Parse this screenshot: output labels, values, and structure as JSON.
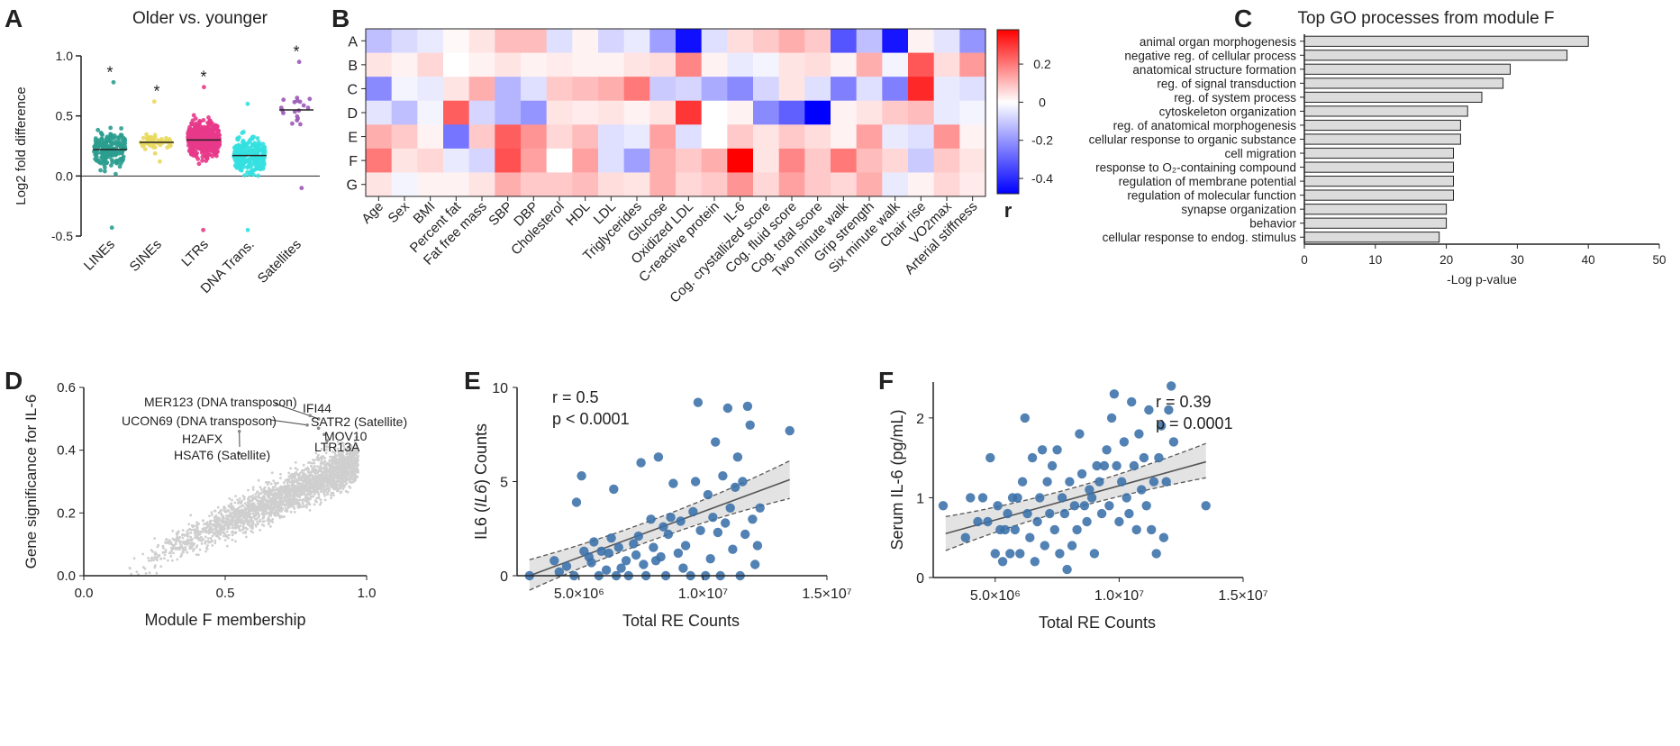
{
  "panels": {
    "a": "A",
    "b": "B",
    "c": "C",
    "d": "D",
    "e": "E",
    "f": "F"
  },
  "chart_data": [
    {
      "type": "scatter",
      "panel": "A",
      "title": "Older vs. younger",
      "ylabel": "Log2 fold difference",
      "ylim": [
        -0.5,
        1.0
      ],
      "yticks": [
        "-0.5",
        "0.0",
        "0.5",
        "1.0"
      ],
      "categories": [
        "LINEs",
        "SINEs",
        "LTRs",
        "DNA Trans.",
        "Satellites"
      ],
      "colors": [
        "#2a9d8f",
        "#e9d85c",
        "#e8388a",
        "#34e0e0",
        "#9b59b6"
      ],
      "medians": [
        0.22,
        0.28,
        0.3,
        0.17,
        0.55
      ],
      "ranges": [
        [
          -0.43,
          0.78
        ],
        [
          0.12,
          0.62
        ],
        [
          -0.45,
          0.74
        ],
        [
          -0.45,
          0.6
        ],
        [
          -0.1,
          0.95
        ]
      ],
      "n": [
        180,
        55,
        420,
        230,
        20
      ],
      "significance": [
        "*",
        "*",
        "*",
        "",
        "*"
      ]
    },
    {
      "type": "heatmap",
      "panel": "B",
      "rows": [
        "A",
        "B",
        "C",
        "D",
        "E",
        "F",
        "G"
      ],
      "columns": [
        "Age",
        "Sex",
        "BMI",
        "Percent fat",
        "Fat free mass",
        "SBP",
        "DBP",
        "Cholesterol",
        "HDL",
        "LDL",
        "Triglycerides",
        "Glucose",
        "Oxidized LDL",
        "C-reactive protein",
        "IL-6",
        "Cog. crystallized score",
        "Cog. fluid score",
        "Cog. total score",
        "Two minute walk",
        "Grip strength",
        "Six minute walk",
        "Chair rise",
        "VO2max",
        "Arterial stiffness"
      ],
      "values": [
        [
          -0.12,
          -0.07,
          -0.04,
          0.01,
          0.04,
          0.1,
          0.1,
          -0.06,
          0.02,
          -0.08,
          -0.04,
          -0.18,
          -0.45,
          -0.06,
          0.05,
          0.08,
          0.12,
          0.08,
          -0.32,
          -0.12,
          -0.44,
          0.02,
          -0.05,
          -0.2
        ],
        [
          0.04,
          0.02,
          0.06,
          0.0,
          0.02,
          0.04,
          0.02,
          0.03,
          0.02,
          0.02,
          0.04,
          0.05,
          0.18,
          0.02,
          -0.04,
          -0.02,
          0.04,
          0.05,
          0.02,
          0.12,
          -0.02,
          0.25,
          0.05,
          0.15
        ],
        [
          -0.22,
          -0.02,
          -0.04,
          0.04,
          0.12,
          -0.14,
          -0.06,
          0.08,
          0.1,
          0.12,
          0.2,
          -0.1,
          -0.08,
          -0.16,
          -0.22,
          -0.08,
          0.04,
          -0.06,
          -0.24,
          -0.06,
          -0.24,
          0.32,
          -0.04,
          -0.06
        ],
        [
          -0.05,
          -0.12,
          -0.02,
          0.24,
          -0.08,
          -0.14,
          -0.2,
          0.04,
          0.03,
          0.04,
          0.02,
          0.04,
          0.3,
          0.0,
          0.02,
          -0.22,
          -0.3,
          -0.48,
          0.02,
          0.04,
          0.08,
          0.1,
          -0.04,
          -0.02
        ],
        [
          0.12,
          0.08,
          0.02,
          -0.26,
          0.08,
          0.24,
          0.16,
          0.06,
          0.1,
          -0.06,
          -0.04,
          0.14,
          -0.06,
          0.0,
          0.08,
          0.04,
          0.08,
          0.05,
          0.02,
          0.14,
          -0.04,
          -0.06,
          0.16,
          0.02
        ],
        [
          0.2,
          0.04,
          0.06,
          -0.04,
          -0.08,
          0.26,
          0.14,
          0.0,
          0.14,
          -0.06,
          -0.18,
          0.12,
          0.08,
          0.12,
          0.4,
          0.04,
          0.18,
          0.08,
          0.2,
          0.1,
          0.06,
          -0.1,
          0.08,
          0.04
        ],
        [
          0.04,
          -0.02,
          0.02,
          0.02,
          0.04,
          0.12,
          0.08,
          0.08,
          0.1,
          0.05,
          0.04,
          0.12,
          0.06,
          0.08,
          0.16,
          0.06,
          0.14,
          0.08,
          0.06,
          0.12,
          -0.04,
          0.02,
          0.06,
          0.03
        ]
      ],
      "colorbar": {
        "label": "r",
        "min": -0.48,
        "max": 0.38,
        "ticks": [
          "0.2",
          "0",
          "-0.2",
          "-0.4"
        ],
        "tick_values": [
          0.2,
          0,
          -0.2,
          -0.4
        ],
        "low_color": "#0000ff",
        "mid_color": "#ffffff",
        "high_color": "#ff0000"
      }
    },
    {
      "type": "bar",
      "panel": "C",
      "title": "Top GO processes from module F",
      "xlabel": "-Log p-value",
      "xlim": [
        0,
        50
      ],
      "xticks": [
        "0",
        "10",
        "20",
        "30",
        "40",
        "50"
      ],
      "categories": [
        "animal organ morphogenesis",
        "negative reg. of cellular process",
        "anatomical structure formation",
        "reg. of signal transduction",
        "reg. of system process",
        "cytoskeleton organization",
        "reg. of anatomical morphogenesis",
        "cellular response to organic substance",
        "cell migration",
        "response to O₂-containing compound",
        "regulation of membrane potential",
        "regulation of molecular function",
        "synapse organization",
        "behavior",
        "cellular response to endog. stimulus"
      ],
      "values": [
        40,
        37,
        29,
        28,
        25,
        23,
        22,
        22,
        21,
        21,
        21,
        21,
        20,
        20,
        19
      ],
      "bar_color": "#dcdcdc"
    },
    {
      "type": "scatter",
      "panel": "D",
      "xlabel": "Module F membership",
      "ylabel": "Gene significance for IL-6",
      "xlim": [
        0,
        1.0
      ],
      "ylim": [
        0,
        0.6
      ],
      "xticks": [
        "0.0",
        "0.5",
        "1.0"
      ],
      "yticks": [
        "0.0",
        "0.2",
        "0.4",
        "0.6"
      ],
      "point_color": "#cfcfcf",
      "annotations": [
        {
          "label": "MER123 (DNA transposon)",
          "x": 0.83,
          "y": 0.5
        },
        {
          "label": "IFI44",
          "x": 0.8,
          "y": 0.51
        },
        {
          "label": "UCON69 (DNA transposon)",
          "x": 0.79,
          "y": 0.48
        },
        {
          "label": "SATR2 (Satellite)",
          "x": 0.83,
          "y": 0.47
        },
        {
          "label": "H2AFX",
          "x": 0.55,
          "y": 0.46
        },
        {
          "label": "MOV10",
          "x": 0.85,
          "y": 0.45
        },
        {
          "label": "HSAT6 (Satellite)",
          "x": 0.55,
          "y": 0.39
        },
        {
          "label": "LTR13A",
          "x": 0.86,
          "y": 0.43
        }
      ]
    },
    {
      "type": "scatter",
      "panel": "E",
      "xlabel": "Total RE Counts",
      "ylabel": "IL6 (IL6) Counts",
      "ylabel_parts": [
        "IL6 (",
        "IL6",
        ") Counts"
      ],
      "xlim": [
        2500000.0,
        15000000.0
      ],
      "ylim": [
        0,
        10
      ],
      "xticks": [
        "5.0×10⁶",
        "1.0×10⁷",
        "1.5×10⁷"
      ],
      "xtick_values": [
        5000000.0,
        10000000.0,
        15000000.0
      ],
      "yticks": [
        "0",
        "5",
        "10"
      ],
      "stats": [
        "r = 0.5",
        "p < 0.0001"
      ],
      "point_color": "#3a6fa8",
      "fit": {
        "x": [
          3000000.0,
          13500000.0
        ],
        "y": [
          0.0,
          5.1
        ],
        "ci_low": [
          -0.9,
          4.1
        ],
        "ci_high": [
          1.0,
          6.1
        ]
      },
      "points": [
        [
          3000000.0,
          0
        ],
        [
          4000000.0,
          0.8
        ],
        [
          4200000.0,
          0.2
        ],
        [
          4500000.0,
          0.5
        ],
        [
          4800000.0,
          0
        ],
        [
          4900000.0,
          3.9
        ],
        [
          5100000.0,
          5.3
        ],
        [
          5200000.0,
          1.3
        ],
        [
          5400000.0,
          1.0
        ],
        [
          5500000.0,
          0.7
        ],
        [
          5600000.0,
          1.8
        ],
        [
          5800000.0,
          0
        ],
        [
          5900000.0,
          1.3
        ],
        [
          6100000.0,
          0.3
        ],
        [
          6200000.0,
          1.2
        ],
        [
          6300000.0,
          2.0
        ],
        [
          6400000.0,
          4.6
        ],
        [
          6500000.0,
          0
        ],
        [
          6600000.0,
          1.5
        ],
        [
          6700000.0,
          0.4
        ],
        [
          6900000.0,
          0.8
        ],
        [
          7000000.0,
          0
        ],
        [
          7200000.0,
          1.7
        ],
        [
          7300000.0,
          1.1
        ],
        [
          7400000.0,
          2.1
        ],
        [
          7500000.0,
          6.0
        ],
        [
          7600000.0,
          0.6
        ],
        [
          7700000.0,
          0
        ],
        [
          7900000.0,
          3.0
        ],
        [
          8000000.0,
          1.5
        ],
        [
          8100000.0,
          0.8
        ],
        [
          8200000.0,
          6.3
        ],
        [
          8300000.0,
          1.0
        ],
        [
          8400000.0,
          2.6
        ],
        [
          8500000.0,
          0
        ],
        [
          8600000.0,
          2.2
        ],
        [
          8700000.0,
          3.1
        ],
        [
          8800000.0,
          4.9
        ],
        [
          9000000.0,
          1.2
        ],
        [
          9100000.0,
          2.9
        ],
        [
          9200000.0,
          0.4
        ],
        [
          9300000.0,
          1.6
        ],
        [
          9500000.0,
          0
        ],
        [
          9600000.0,
          3.4
        ],
        [
          9700000.0,
          5.0
        ],
        [
          9800000.0,
          9.2
        ],
        [
          9900000.0,
          2.4
        ],
        [
          10100000.0,
          0
        ],
        [
          10200000.0,
          4.3
        ],
        [
          10300000.0,
          0.9
        ],
        [
          10400000.0,
          3.1
        ],
        [
          10500000.0,
          7.1
        ],
        [
          10600000.0,
          2.3
        ],
        [
          10700000.0,
          0
        ],
        [
          10800000.0,
          5.3
        ],
        [
          10900000.0,
          2.8
        ],
        [
          11000000.0,
          8.9
        ],
        [
          11100000.0,
          3.6
        ],
        [
          11200000.0,
          1.4
        ],
        [
          11300000.0,
          4.7
        ],
        [
          11400000.0,
          6.3
        ],
        [
          11500000.0,
          0
        ],
        [
          11600000.0,
          5.0
        ],
        [
          11700000.0,
          2.2
        ],
        [
          11800000.0,
          9.0
        ],
        [
          11900000.0,
          8.0
        ],
        [
          12000000.0,
          3.0
        ],
        [
          12100000.0,
          0.6
        ],
        [
          12200000.0,
          1.6
        ],
        [
          12300000.0,
          3.6
        ],
        [
          13500000.0,
          7.7
        ]
      ]
    },
    {
      "type": "scatter",
      "panel": "F",
      "xlabel": "Total RE Counts",
      "ylabel": "Serum IL-6 (pg/mL)",
      "xlim": [
        2500000.0,
        15000000.0
      ],
      "ylim": [
        0,
        2.5
      ],
      "xticks": [
        "5.0×10⁶",
        "1.0×10⁷",
        "1.5×10⁷"
      ],
      "xtick_values": [
        5000000.0,
        10000000.0,
        15000000.0
      ],
      "yticks": [
        "0",
        "1",
        "2"
      ],
      "stats": [
        "r = 0.39",
        "p = 0.0001"
      ],
      "point_color": "#3a6fa8",
      "fit": {
        "x": [
          3000000.0,
          13500000.0
        ],
        "y": [
          0.55,
          1.45
        ],
        "ci_low": [
          0.3,
          1.25
        ],
        "ci_high": [
          0.8,
          1.68
        ]
      },
      "points": [
        [
          2900000.0,
          0.9
        ],
        [
          3800000.0,
          0.5
        ],
        [
          4000000.0,
          1.0
        ],
        [
          4300000.0,
          0.7
        ],
        [
          4500000.0,
          1.0
        ],
        [
          4700000.0,
          0.7
        ],
        [
          4800000.0,
          1.5
        ],
        [
          5000000.0,
          0.3
        ],
        [
          5100000.0,
          0.9
        ],
        [
          5200000.0,
          0.6
        ],
        [
          5300000.0,
          0.2
        ],
        [
          5400000.0,
          0.6
        ],
        [
          5500000.0,
          0.8
        ],
        [
          5600000.0,
          0.3
        ],
        [
          5700000.0,
          1.0
        ],
        [
          5800000.0,
          0.6
        ],
        [
          5900000.0,
          1.0
        ],
        [
          6000000.0,
          0.3
        ],
        [
          6100000.0,
          1.2
        ],
        [
          6200000.0,
          2.0
        ],
        [
          6300000.0,
          0.8
        ],
        [
          6400000.0,
          0.5
        ],
        [
          6500000.0,
          1.5
        ],
        [
          6600000.0,
          0.2
        ],
        [
          6700000.0,
          0.7
        ],
        [
          6800000.0,
          1.0
        ],
        [
          6900000.0,
          1.6
        ],
        [
          7000000.0,
          0.4
        ],
        [
          7100000.0,
          1.2
        ],
        [
          7200000.0,
          0.8
        ],
        [
          7300000.0,
          1.4
        ],
        [
          7400000.0,
          0.6
        ],
        [
          7500000.0,
          1.6
        ],
        [
          7600000.0,
          0.3
        ],
        [
          7700000.0,
          1.0
        ],
        [
          7800000.0,
          0.8
        ],
        [
          7900000.0,
          0.1
        ],
        [
          8000000.0,
          1.2
        ],
        [
          8100000.0,
          0.4
        ],
        [
          8200000.0,
          0.9
        ],
        [
          8300000.0,
          0.6
        ],
        [
          8400000.0,
          1.8
        ],
        [
          8500000.0,
          1.3
        ],
        [
          8600000.0,
          0.9
        ],
        [
          8700000.0,
          0.7
        ],
        [
          8800000.0,
          1.1
        ],
        [
          8900000.0,
          1.0
        ],
        [
          9000000.0,
          0.3
        ],
        [
          9100000.0,
          1.4
        ],
        [
          9200000.0,
          1.2
        ],
        [
          9300000.0,
          0.8
        ],
        [
          9400000.0,
          1.4
        ],
        [
          9500000.0,
          1.6
        ],
        [
          9600000.0,
          0.9
        ],
        [
          9700000.0,
          2.0
        ],
        [
          9800000.0,
          2.3
        ],
        [
          9900000.0,
          1.4
        ],
        [
          10000000.0,
          0.7
        ],
        [
          10100000.0,
          1.2
        ],
        [
          10200000.0,
          1.7
        ],
        [
          10300000.0,
          1.0
        ],
        [
          10400000.0,
          0.8
        ],
        [
          10500000.0,
          2.2
        ],
        [
          10600000.0,
          1.4
        ],
        [
          10700000.0,
          0.6
        ],
        [
          10800000.0,
          1.8
        ],
        [
          10900000.0,
          1.1
        ],
        [
          11000000.0,
          1.5
        ],
        [
          11100000.0,
          0.9
        ],
        [
          11200000.0,
          2.1
        ],
        [
          11300000.0,
          0.6
        ],
        [
          11400000.0,
          1.2
        ],
        [
          11500000.0,
          0.3
        ],
        [
          11600000.0,
          1.5
        ],
        [
          11700000.0,
          1.9
        ],
        [
          11800000.0,
          0.5
        ],
        [
          11900000.0,
          1.2
        ],
        [
          12000000.0,
          2.1
        ],
        [
          12100000.0,
          2.4
        ],
        [
          12200000.0,
          1.7
        ],
        [
          13500000.0,
          0.9
        ]
      ]
    }
  ]
}
